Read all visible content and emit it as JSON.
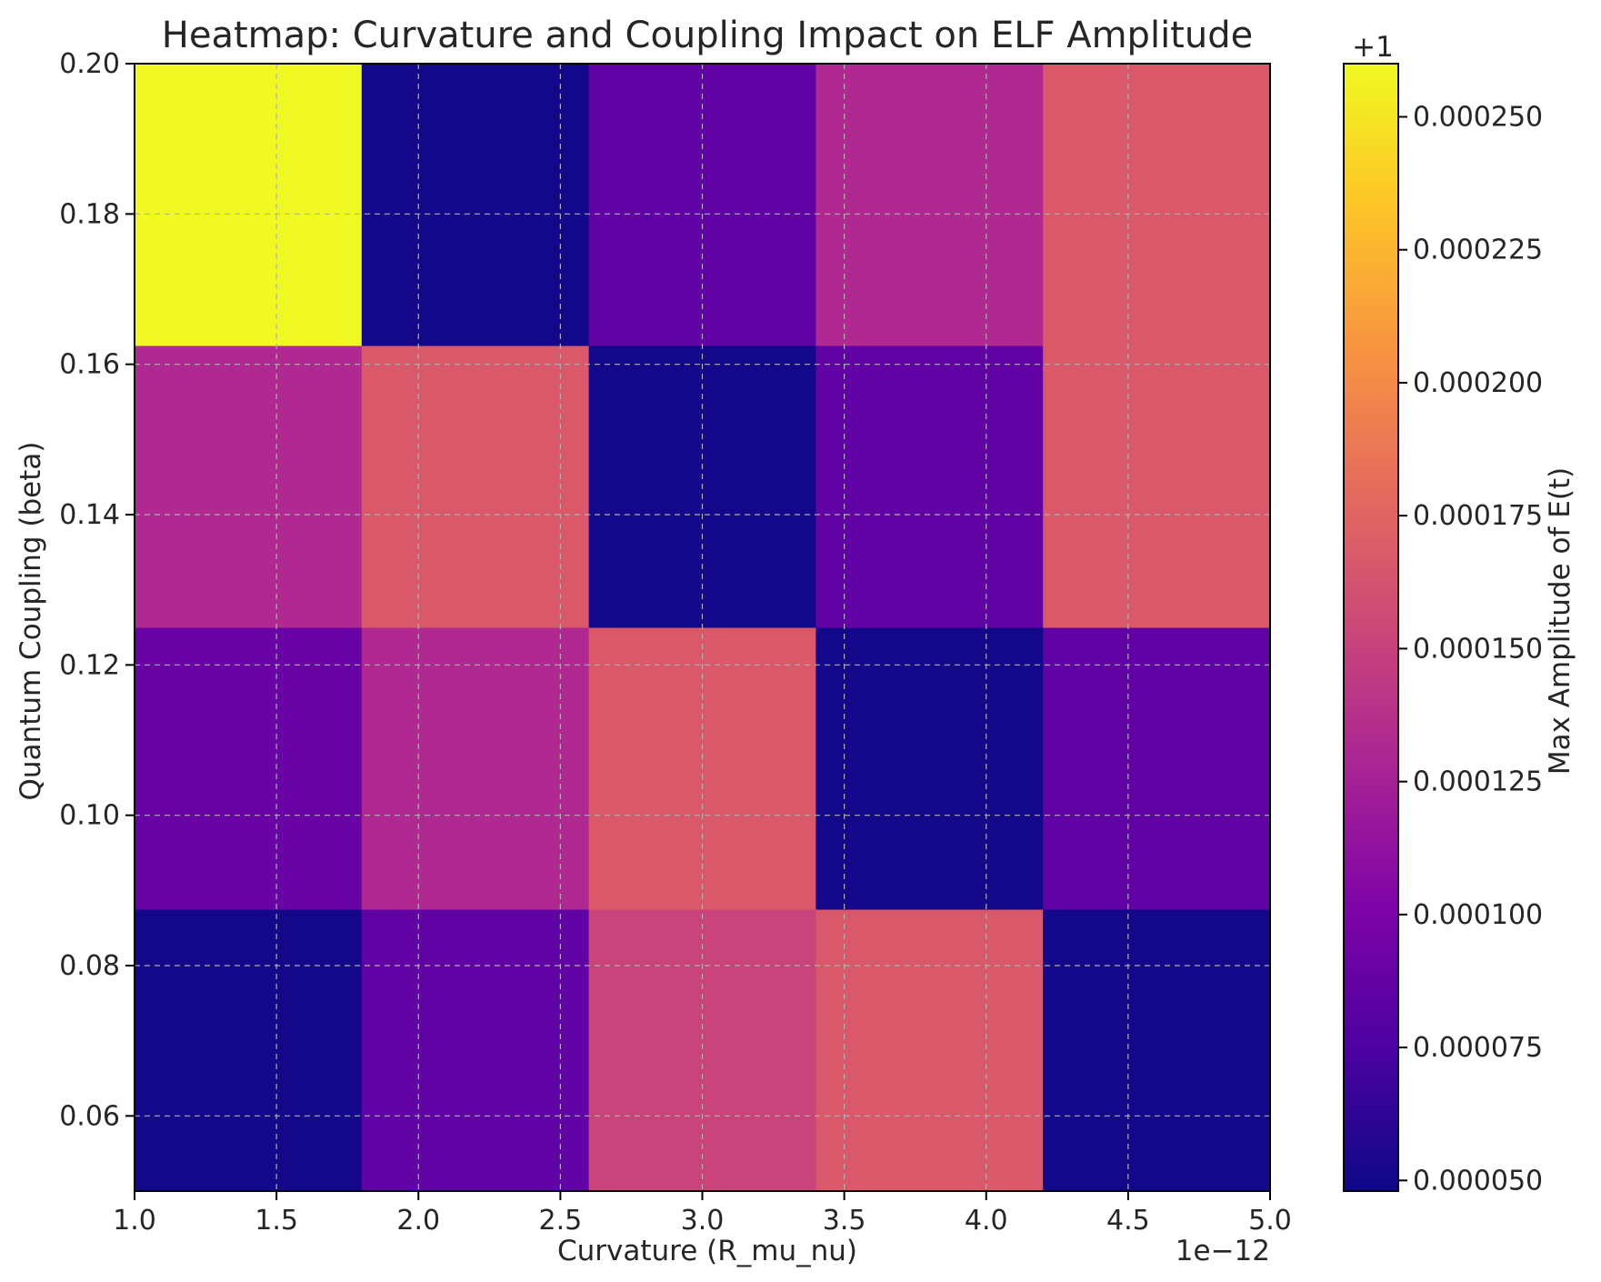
{
  "chart_data": {
    "type": "heatmap",
    "title": "Heatmap: Curvature and Coupling Impact on ELF Amplitude",
    "xlabel": "Curvature (R_mu_nu)",
    "ylabel": "Quantum Coupling (beta)",
    "x_offset_label": "1e−12",
    "x_ticks": [
      "1.0",
      "1.5",
      "2.0",
      "2.5",
      "3.0",
      "3.5",
      "4.0",
      "4.5",
      "5.0"
    ],
    "y_ticks": [
      "0.06",
      "0.08",
      "0.10",
      "0.12",
      "0.14",
      "0.16",
      "0.18",
      "0.20"
    ],
    "xlim": [
      1.0,
      5.0
    ],
    "ylim": [
      0.05,
      0.2
    ],
    "x_edges": [
      1.0,
      1.8,
      2.6,
      3.4,
      4.2,
      5.0
    ],
    "y_edges": [
      0.05,
      0.0875,
      0.125,
      0.1625,
      0.2
    ],
    "values": [
      [
        5e-05,
        8.5e-05,
        0.000152,
        0.000167,
        5e-05
      ],
      [
        9e-05,
        0.000132,
        0.000167,
        5e-05,
        8.5e-05
      ],
      [
        0.000132,
        0.000167,
        5e-05,
        8.5e-05,
        0.000167
      ],
      [
        0.00026,
        5e-05,
        8.5e-05,
        0.000132,
        0.000167
      ]
    ],
    "colormap": "plasma",
    "colorbar": {
      "label": "Max Amplitude of E(t)",
      "offset_label": "+1",
      "ticks": [
        "0.000050",
        "0.000075",
        "0.000100",
        "0.000125",
        "0.000150",
        "0.000175",
        "0.000200",
        "0.000225",
        "0.000250"
      ],
      "range": [
        4.8e-05,
        0.00026
      ]
    },
    "grid": true
  }
}
